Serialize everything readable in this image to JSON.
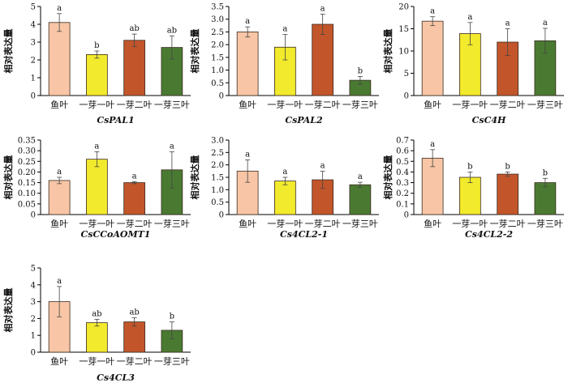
{
  "figure": {
    "ylabel": "相对表达量",
    "categories": [
      "鱼叶",
      "一芽一叶",
      "一芽二叶",
      "一芽三叶"
    ],
    "colors": [
      "#f8c6a6",
      "#f2ea2c",
      "#c2562a",
      "#4a7a32"
    ]
  },
  "chart_data": [
    {
      "type": "bar",
      "title": "CsPAL1",
      "ylabel": "相对表达量",
      "categories": [
        "鱼叶",
        "一芽一叶",
        "一芽二叶",
        "一芽三叶"
      ],
      "ylim": [
        0,
        5
      ],
      "yticks": [
        0,
        1,
        2,
        3,
        4,
        5
      ],
      "tickLabels": [
        "0",
        "1",
        "2",
        "3",
        "4",
        "5"
      ],
      "values": [
        4.1,
        2.3,
        3.1,
        2.7
      ],
      "errors": [
        0.5,
        0.2,
        0.35,
        0.65
      ],
      "sig": [
        "a",
        "b",
        "ab",
        "ab"
      ]
    },
    {
      "type": "bar",
      "title": "CsPAL2",
      "ylabel": "相对表达量",
      "categories": [
        "鱼叶",
        "一芽一叶",
        "一芽二叶",
        "一芽三叶"
      ],
      "ylim": [
        0,
        3.5
      ],
      "yticks": [
        0,
        0.5,
        1,
        1.5,
        2,
        2.5,
        3,
        3.5
      ],
      "tickLabels": [
        "0",
        "0.5",
        "1.0",
        "1.5",
        "2.0",
        "2.5",
        "3.0",
        "3.5"
      ],
      "values": [
        2.5,
        1.9,
        2.8,
        0.6
      ],
      "errors": [
        0.2,
        0.5,
        0.4,
        0.15
      ],
      "sig": [
        "a",
        "a",
        "a",
        "b"
      ]
    },
    {
      "type": "bar",
      "title": "CsC4H",
      "ylabel": "相对表达量",
      "categories": [
        "鱼叶",
        "一芽一叶",
        "一芽二叶",
        "一芽三叶"
      ],
      "ylim": [
        0,
        20
      ],
      "yticks": [
        0,
        5,
        10,
        15,
        20
      ],
      "tickLabels": [
        "0",
        "5",
        "10",
        "15",
        "20"
      ],
      "values": [
        16.7,
        13.9,
        12.0,
        12.3
      ],
      "errors": [
        1.0,
        2.5,
        3.0,
        2.8
      ],
      "sig": [
        "a",
        "a",
        "a",
        "a"
      ]
    },
    {
      "type": "bar",
      "title": "CsCCoAOMT1",
      "ylabel": "相对表达量",
      "categories": [
        "鱼叶",
        "一芽一叶",
        "一芽二叶",
        "一芽三叶"
      ],
      "ylim": [
        0,
        0.35
      ],
      "yticks": [
        0,
        0.05,
        0.1,
        0.15,
        0.2,
        0.25,
        0.3,
        0.35
      ],
      "tickLabels": [
        "0",
        "0.05",
        "0.10",
        "0.15",
        "0.20",
        "0.25",
        "0.30",
        "0.35"
      ],
      "values": [
        0.16,
        0.26,
        0.15,
        0.21
      ],
      "errors": [
        0.015,
        0.035,
        0.005,
        0.085
      ],
      "sig": [
        "a",
        "a",
        "a",
        "a"
      ]
    },
    {
      "type": "bar",
      "title": "Cs4CL2-1",
      "ylabel": "相对表达量",
      "categories": [
        "鱼叶",
        "一芽一叶",
        "一芽二叶",
        "一芽三叶"
      ],
      "ylim": [
        0,
        3
      ],
      "yticks": [
        0,
        0.5,
        1,
        1.5,
        2,
        2.5,
        3
      ],
      "tickLabels": [
        "0",
        "0.5",
        "1.0",
        "1.5",
        "2.0",
        "2.5",
        "3.0"
      ],
      "values": [
        1.75,
        1.35,
        1.4,
        1.2
      ],
      "errors": [
        0.45,
        0.15,
        0.35,
        0.1
      ],
      "sig": [
        "a",
        "a",
        "a",
        "a"
      ]
    },
    {
      "type": "bar",
      "title": "Cs4CL2-2",
      "ylabel": "相对表达量",
      "categories": [
        "鱼叶",
        "一芽一叶",
        "一芽二叶",
        "一芽三叶"
      ],
      "ylim": [
        0,
        0.7
      ],
      "yticks": [
        0,
        0.1,
        0.2,
        0.3,
        0.4,
        0.5,
        0.6,
        0.7
      ],
      "tickLabels": [
        "0",
        "0.1",
        "0.2",
        "0.3",
        "0.4",
        "0.5",
        "0.6",
        "0.7"
      ],
      "values": [
        0.53,
        0.35,
        0.38,
        0.3
      ],
      "errors": [
        0.08,
        0.05,
        0.02,
        0.04
      ],
      "sig": [
        "a",
        "b",
        "b",
        "b"
      ]
    },
    {
      "type": "bar",
      "title": "Cs4CL3",
      "ylabel": "相对表达量",
      "categories": [
        "鱼叶",
        "一芽一叶",
        "一芽二叶",
        "一芽三叶"
      ],
      "ylim": [
        0,
        5
      ],
      "yticks": [
        0,
        1,
        2,
        3,
        4,
        5
      ],
      "tickLabels": [
        "0",
        "1",
        "2",
        "3",
        "4",
        "5"
      ],
      "values": [
        3.0,
        1.75,
        1.8,
        1.3
      ],
      "errors": [
        0.9,
        0.2,
        0.25,
        0.5
      ],
      "sig": [
        "a",
        "ab",
        "ab",
        "b"
      ]
    }
  ]
}
